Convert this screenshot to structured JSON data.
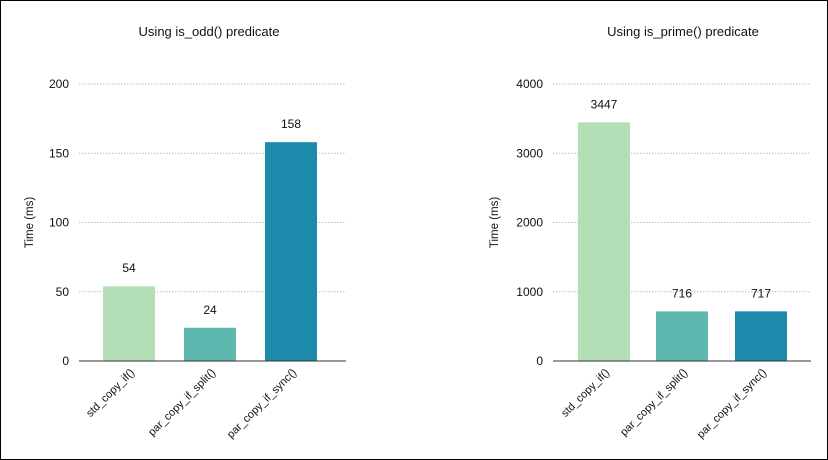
{
  "chart_data": [
    {
      "type": "bar",
      "title": "Using is_odd() predicate",
      "ylabel": "Time (ms)",
      "xlabel": "",
      "categories": [
        "std_copy_if()",
        "par_copy_if_split()",
        "par_copy_if_sync()"
      ],
      "values": [
        54,
        24,
        158
      ],
      "data_labels": [
        "54",
        "24",
        "158"
      ],
      "ylim": [
        0,
        200
      ],
      "yticks": [
        0,
        50,
        100,
        150,
        200
      ],
      "ytick_labels": [
        "0",
        "50",
        "100",
        "150",
        "200"
      ],
      "colors": [
        "#b3dfb6",
        "#5fb8b0",
        "#1e8aab"
      ],
      "grid": true,
      "legend": "none"
    },
    {
      "type": "bar",
      "title": "Using is_prime() predicate",
      "ylabel": "Time (ms)",
      "xlabel": "",
      "categories": [
        "std_copy_if()",
        "par_copy_if_split()",
        "par_copy_if_sync()"
      ],
      "values": [
        3447,
        716,
        717
      ],
      "data_labels": [
        "3447",
        "716",
        "717"
      ],
      "ylim": [
        0,
        4000
      ],
      "yticks": [
        0,
        1000,
        2000,
        3000,
        4000
      ],
      "ytick_labels": [
        "0",
        "1000",
        "2000",
        "3000",
        "4000"
      ],
      "colors": [
        "#b3dfb6",
        "#5fb8b0",
        "#1e8aab"
      ],
      "grid": true,
      "legend": "none"
    }
  ]
}
